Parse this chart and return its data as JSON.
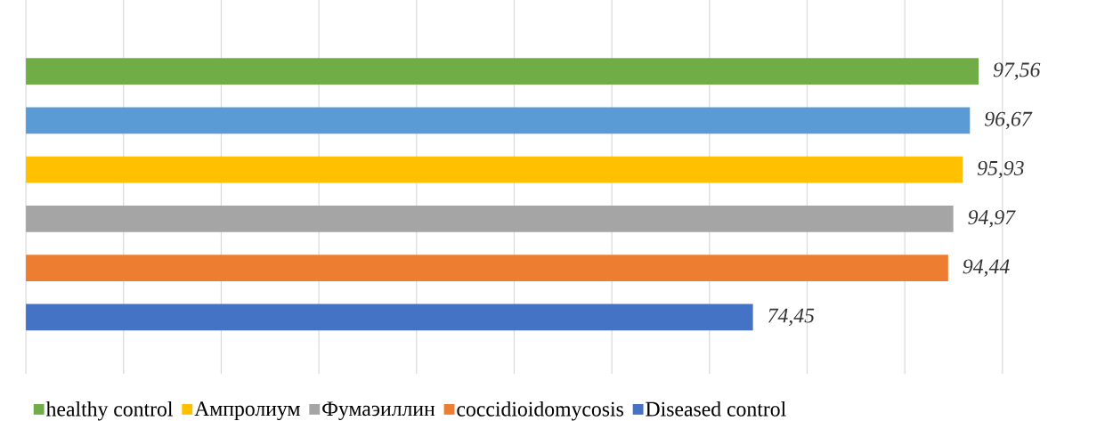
{
  "chart_data": {
    "type": "bar",
    "orientation": "horizontal",
    "stacked": true,
    "categories": [
      null,
      null,
      null,
      null,
      null,
      null
    ],
    "series": [
      {
        "name": "healthy control",
        "color": "#70ad47",
        "values": [
          97.56,
          null,
          null,
          null,
          null,
          null
        ],
        "value_labels": [
          "97,56",
          null,
          null,
          null,
          null,
          null
        ]
      },
      {
        "color": "#5b9bd5",
        "values": [
          null,
          96.67,
          null,
          null,
          null,
          null
        ],
        "value_labels": [
          null,
          "96,67",
          null,
          null,
          null,
          null
        ]
      },
      {
        "name": "Ампролиум",
        "color": "#ffc000",
        "values": [
          null,
          null,
          95.93,
          null,
          null,
          null
        ],
        "value_labels": [
          null,
          null,
          "95,93",
          null,
          null,
          null
        ]
      },
      {
        "name": "Фумаэиллин",
        "color": "#a5a5a5",
        "values": [
          null,
          null,
          null,
          94.97,
          null,
          null
        ],
        "value_labels": [
          null,
          null,
          null,
          "94,97",
          null,
          null
        ]
      },
      {
        "name": "coccidioidomycosis",
        "color": "#ed7d31",
        "values": [
          null,
          null,
          null,
          null,
          94.44,
          null
        ],
        "value_labels": [
          null,
          null,
          null,
          null,
          "94,44",
          null
        ]
      },
      {
        "name": "Diseased control",
        "color": "#4472c4",
        "values": [
          null,
          null,
          null,
          null,
          null,
          74.45
        ],
        "value_labels": [
          null,
          null,
          null,
          null,
          null,
          "74,45"
        ]
      }
    ],
    "xlim": [
      0,
      100
    ],
    "xticks": [
      {
        "value": 0,
        "label": null
      },
      {
        "value": 10,
        "label": null
      },
      {
        "value": 20,
        "label": null
      },
      {
        "value": 30,
        "label": null
      },
      {
        "value": 40,
        "label": null
      },
      {
        "value": 50,
        "label": null
      },
      {
        "value": 60,
        "label": null
      },
      {
        "value": 70,
        "label": null
      },
      {
        "value": 80,
        "label": null
      },
      {
        "value": 90,
        "label": null
      },
      {
        "value": 100,
        "label": null
      }
    ],
    "grid": "x",
    "legend": "bottom",
    "tick_labels": false
  }
}
